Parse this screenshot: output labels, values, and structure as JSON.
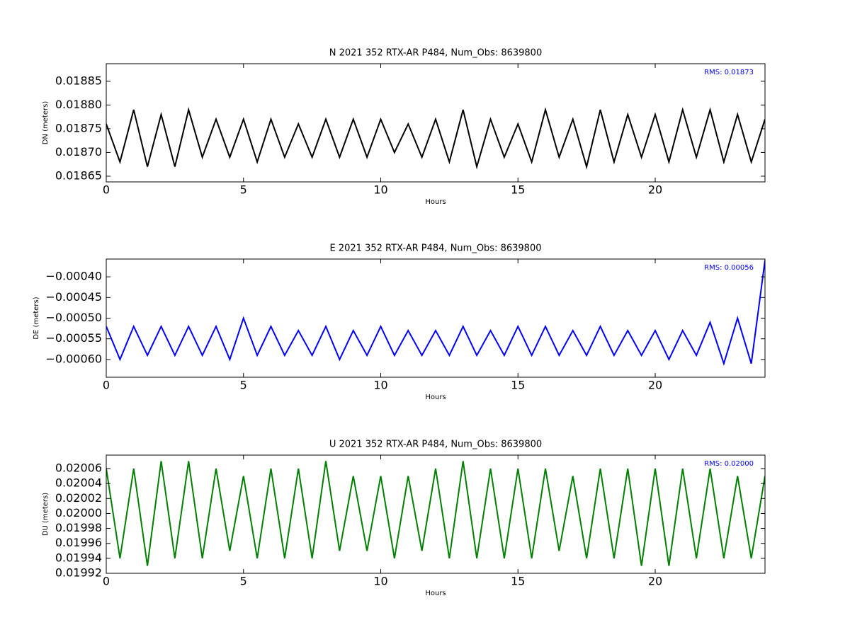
{
  "chart_data": [
    {
      "type": "line",
      "title": "N 2021 352 RTX-AR  P484, Num_Obs: 8639800",
      "xlabel": "Hours",
      "ylabel": "DN (meters)",
      "annotation": "RMS:  0.01873",
      "annotation_color": "#0000ff",
      "color": "#000000",
      "x": [
        0,
        0.5,
        1,
        1.5,
        2,
        2.5,
        3,
        3.5,
        4,
        4.5,
        5,
        5.5,
        6,
        6.5,
        7,
        7.5,
        8,
        8.5,
        9,
        9.5,
        10,
        10.5,
        11,
        11.5,
        12,
        12.5,
        13,
        13.5,
        14,
        14.5,
        15,
        15.5,
        16,
        16.5,
        17,
        17.5,
        18,
        18.5,
        19,
        19.5,
        20,
        20.5,
        21,
        21.5,
        22,
        22.5,
        23,
        23.5,
        24
      ],
      "values": [
        0.01876,
        0.01868,
        0.01879,
        0.01867,
        0.01878,
        0.01867,
        0.01879,
        0.01869,
        0.01877,
        0.01869,
        0.01877,
        0.01868,
        0.01877,
        0.01869,
        0.01876,
        0.01869,
        0.01877,
        0.01869,
        0.01877,
        0.01869,
        0.01877,
        0.0187,
        0.01876,
        0.01869,
        0.01877,
        0.01868,
        0.01879,
        0.01867,
        0.01877,
        0.01869,
        0.01876,
        0.01868,
        0.01879,
        0.01869,
        0.01877,
        0.01867,
        0.01879,
        0.01868,
        0.01878,
        0.01869,
        0.01878,
        0.01868,
        0.01879,
        0.01869,
        0.01879,
        0.01868,
        0.01878,
        0.01868,
        0.01877
      ],
      "xlim": [
        0,
        24
      ],
      "xticks": [
        0,
        5,
        10,
        15,
        20
      ],
      "ylim": [
        0.018638,
        0.018887
      ],
      "yticks": [
        0.01865,
        {
          "value": 0.0187,
          "label": "0.01870"
        },
        0.01875,
        {
          "value": 0.0188,
          "label": "0.01880"
        },
        0.01885
      ]
    },
    {
      "type": "line",
      "title": "E 2021 352 RTX-AR  P484, Num_Obs: 8639800",
      "xlabel": "Hours",
      "ylabel": "DE (meters)",
      "annotation": "RMS:  0.00056",
      "annotation_color": "#0000ff",
      "color": "#0000ff",
      "x": [
        0,
        0.5,
        1,
        1.5,
        2,
        2.5,
        3,
        3.5,
        4,
        4.5,
        5,
        5.5,
        6,
        6.5,
        7,
        7.5,
        8,
        8.5,
        9,
        9.5,
        10,
        10.5,
        11,
        11.5,
        12,
        12.5,
        13,
        13.5,
        14,
        14.5,
        15,
        15.5,
        16,
        16.5,
        17,
        17.5,
        18,
        18.5,
        19,
        19.5,
        20,
        20.5,
        21,
        21.5,
        22,
        22.5,
        23,
        23.5,
        24
      ],
      "values": [
        -0.00052,
        -0.0006,
        -0.00052,
        -0.00059,
        -0.00052,
        -0.00059,
        -0.00052,
        -0.00059,
        -0.00052,
        -0.0006,
        -0.0005,
        -0.00059,
        -0.00052,
        -0.00059,
        -0.00053,
        -0.00059,
        -0.00052,
        -0.0006,
        -0.00053,
        -0.00059,
        -0.00052,
        -0.00059,
        -0.00053,
        -0.00059,
        -0.00053,
        -0.00059,
        -0.00052,
        -0.00059,
        -0.00053,
        -0.00059,
        -0.00052,
        -0.00059,
        -0.00052,
        -0.00059,
        -0.00053,
        -0.00059,
        -0.00052,
        -0.00059,
        -0.00053,
        -0.00059,
        -0.00053,
        -0.0006,
        -0.00053,
        -0.00059,
        -0.00051,
        -0.00061,
        -0.0005,
        -0.00061,
        -0.00036
      ],
      "xlim": [
        0,
        24
      ],
      "xticks": [
        0,
        5,
        10,
        15,
        20
      ],
      "ylim": [
        -0.000643,
        -0.000357
      ],
      "yticks": [
        {
          "value": -0.0006,
          "label": "−0.00060"
        },
        {
          "value": -0.00055,
          "label": "−0.00055"
        },
        {
          "value": -0.0005,
          "label": "−0.00050"
        },
        {
          "value": -0.00045,
          "label": "−0.00045"
        },
        {
          "value": -0.0004,
          "label": "−0.00040"
        }
      ]
    },
    {
      "type": "line",
      "title": "U 2021 352 RTX-AR  P484, Num_Obs: 8639800",
      "xlabel": "Hours",
      "ylabel": "DU (meters)",
      "annotation": "RMS:  0.02000",
      "annotation_color": "#0000ff",
      "color": "#008000",
      "x": [
        0,
        0.5,
        1,
        1.5,
        2,
        2.5,
        3,
        3.5,
        4,
        4.5,
        5,
        5.5,
        6,
        6.5,
        7,
        7.5,
        8,
        8.5,
        9,
        9.5,
        10,
        10.5,
        11,
        11.5,
        12,
        12.5,
        13,
        13.5,
        14,
        14.5,
        15,
        15.5,
        16,
        16.5,
        17,
        17.5,
        18,
        18.5,
        19,
        19.5,
        20,
        20.5,
        21,
        21.5,
        22,
        22.5,
        23,
        23.5,
        24
      ],
      "values": [
        0.02006,
        0.01994,
        0.02006,
        0.01993,
        0.02007,
        0.01994,
        0.02007,
        0.01994,
        0.02006,
        0.01995,
        0.02005,
        0.01994,
        0.02006,
        0.01994,
        0.02006,
        0.01994,
        0.02007,
        0.01995,
        0.02005,
        0.01995,
        0.02005,
        0.01994,
        0.02005,
        0.01995,
        0.02006,
        0.01994,
        0.02007,
        0.01994,
        0.02006,
        0.01994,
        0.02006,
        0.01994,
        0.02006,
        0.01995,
        0.02005,
        0.01994,
        0.02006,
        0.01994,
        0.02006,
        0.01993,
        0.02006,
        0.01993,
        0.02006,
        0.01994,
        0.02006,
        0.01994,
        0.02005,
        0.01994,
        0.02005
      ],
      "xlim": [
        0,
        24
      ],
      "xticks": [
        0,
        5,
        10,
        15,
        20
      ],
      "ylim": [
        0.01992,
        0.020078
      ],
      "yticks": [
        0.01992,
        0.01994,
        0.01996,
        0.01998,
        {
          "value": 0.02,
          "label": "0.02000"
        },
        0.02002,
        0.02004,
        0.02006
      ]
    }
  ]
}
